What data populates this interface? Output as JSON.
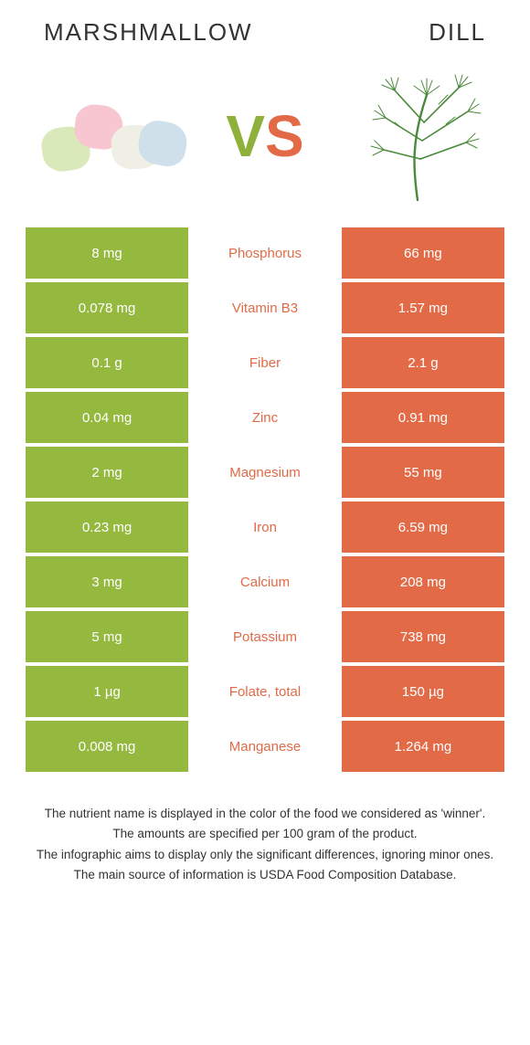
{
  "colors": {
    "left_bg": "#95b83f",
    "right_bg": "#e26a47",
    "mid_text_winner_left": "#8fb03a",
    "mid_text_winner_right": "#e26a47",
    "v_color": "#8fb03a",
    "s_color": "#e26a47"
  },
  "header": {
    "left": "Marshmallow",
    "right": "Dill",
    "vs_v": "V",
    "vs_s": "S"
  },
  "rows": [
    {
      "nutrient": "Phosphorus",
      "left": "8 mg",
      "right": "66 mg",
      "winner": "right"
    },
    {
      "nutrient": "Vitamin B3",
      "left": "0.078 mg",
      "right": "1.57 mg",
      "winner": "right"
    },
    {
      "nutrient": "Fiber",
      "left": "0.1 g",
      "right": "2.1 g",
      "winner": "right"
    },
    {
      "nutrient": "Zinc",
      "left": "0.04 mg",
      "right": "0.91 mg",
      "winner": "right"
    },
    {
      "nutrient": "Magnesium",
      "left": "2 mg",
      "right": "55 mg",
      "winner": "right"
    },
    {
      "nutrient": "Iron",
      "left": "0.23 mg",
      "right": "6.59 mg",
      "winner": "right"
    },
    {
      "nutrient": "Calcium",
      "left": "3 mg",
      "right": "208 mg",
      "winner": "right"
    },
    {
      "nutrient": "Potassium",
      "left": "5 mg",
      "right": "738 mg",
      "winner": "right"
    },
    {
      "nutrient": "Folate, total",
      "left": "1 µg",
      "right": "150 µg",
      "winner": "right"
    },
    {
      "nutrient": "Manganese",
      "left": "0.008 mg",
      "right": "1.264 mg",
      "winner": "right"
    }
  ],
  "footer": {
    "l1": "The nutrient name is displayed in the color of the food we considered as 'winner'.",
    "l2": "The amounts are specified per 100 gram of the product.",
    "l3": "The infographic aims to display only the significant differences, ignoring minor ones.",
    "l4": "The main source of information is USDA Food Composition Database."
  }
}
